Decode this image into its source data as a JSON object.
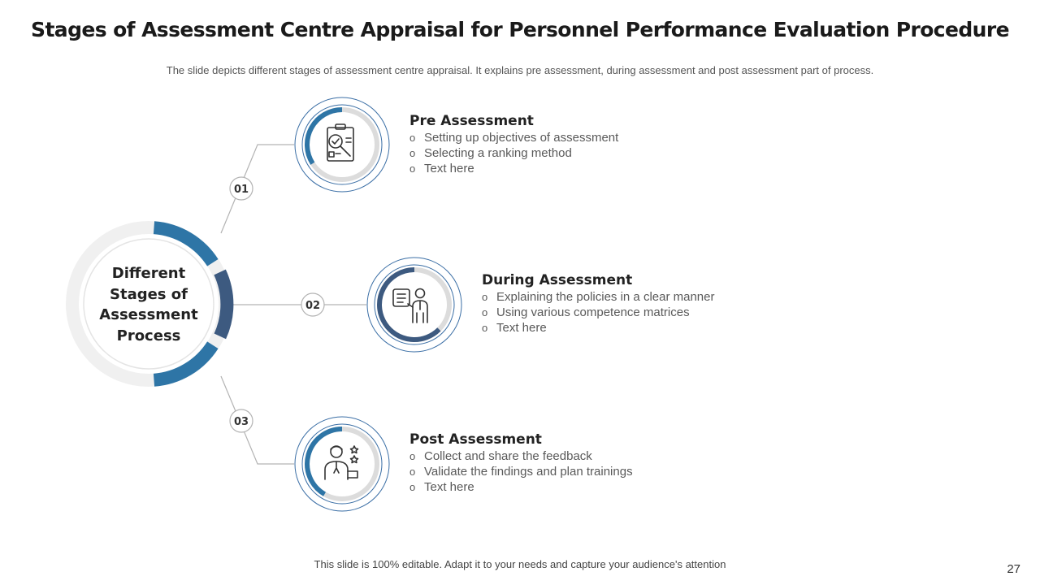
{
  "title": "Stages of Assessment Centre Appraisal for Personnel Performance Evaluation Procedure",
  "subtitle": "The slide depicts different stages of assessment centre appraisal. It explains pre assessment, during assessment and post assessment part of process.",
  "center": {
    "lines": [
      "Different",
      "Stages of",
      "Assessment",
      "Process"
    ]
  },
  "stages": [
    {
      "number": "01",
      "title": "Pre Assessment",
      "icon": "clipboard-magnifier-icon",
      "bullet": "o",
      "items": [
        "Setting up objectives of assessment",
        "Selecting a ranking method",
        "Text here"
      ]
    },
    {
      "number": "02",
      "title": "During Assessment",
      "icon": "presenter-document-icon",
      "bullet": "o",
      "items": [
        "Explaining the policies in a clear manner",
        "Using various competence matrices",
        "Text here"
      ]
    },
    {
      "number": "03",
      "title": "Post Assessment",
      "icon": "employee-rating-stars-icon",
      "bullet": "o",
      "items": [
        "Collect and share the feedback",
        "Validate the findings and plan trainings",
        "Text here"
      ]
    }
  ],
  "footer": "This slide is 100% editable. Adapt it to your needs and capture your audience's attention",
  "page_number": "27",
  "colors": {
    "accent_blue": "#2e75a6",
    "accent_navy": "#3d5a80",
    "ring_outline": "#3a6ea5",
    "connector": "#b3b3b3",
    "track": "#efefef"
  }
}
